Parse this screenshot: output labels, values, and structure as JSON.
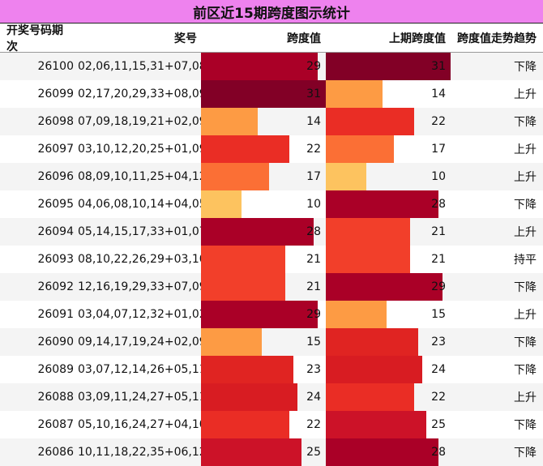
{
  "title": "前区近15期跨度图示统计",
  "headers": {
    "issue": "开奖号码期次",
    "numbers": "奖号",
    "span": "跨度值",
    "prev_span": "上期跨度值",
    "trend": "跨度值走势趋势"
  },
  "span_max": 31,
  "color_scale": {
    "10": "#fdc35f",
    "14": "#fd9b44",
    "15": "#fd9b44",
    "17": "#fb6f35",
    "21": "#f23f2a",
    "22": "#ea2d25",
    "23": "#e02422",
    "24": "#d81c22",
    "25": "#cc1228",
    "28": "#aa0027",
    "29": "#aa0027",
    "31": "#820026"
  },
  "rows": [
    {
      "issue": "26100",
      "numbers": "02,06,11,15,31+07,08",
      "span": 29,
      "prev_span": 31,
      "trend": "下降"
    },
    {
      "issue": "26099",
      "numbers": "02,17,20,29,33+08,09",
      "span": 31,
      "prev_span": 14,
      "trend": "上升"
    },
    {
      "issue": "26098",
      "numbers": "07,09,18,19,21+02,09",
      "span": 14,
      "prev_span": 22,
      "trend": "下降"
    },
    {
      "issue": "26097",
      "numbers": "03,10,12,20,25+01,09",
      "span": 22,
      "prev_span": 17,
      "trend": "上升"
    },
    {
      "issue": "26096",
      "numbers": "08,09,10,11,25+04,12",
      "span": 17,
      "prev_span": 10,
      "trend": "上升"
    },
    {
      "issue": "26095",
      "numbers": "04,06,08,10,14+04,05",
      "span": 10,
      "prev_span": 28,
      "trend": "下降"
    },
    {
      "issue": "26094",
      "numbers": "05,14,15,17,33+01,07",
      "span": 28,
      "prev_span": 21,
      "trend": "上升"
    },
    {
      "issue": "26093",
      "numbers": "08,10,22,26,29+03,10",
      "span": 21,
      "prev_span": 21,
      "trend": "持平"
    },
    {
      "issue": "26092",
      "numbers": "12,16,19,29,33+07,09",
      "span": 21,
      "prev_span": 29,
      "trend": "下降"
    },
    {
      "issue": "26091",
      "numbers": "03,04,07,12,32+01,02",
      "span": 29,
      "prev_span": 15,
      "trend": "上升"
    },
    {
      "issue": "26090",
      "numbers": "09,14,17,19,24+02,09",
      "span": 15,
      "prev_span": 23,
      "trend": "下降"
    },
    {
      "issue": "26089",
      "numbers": "03,07,12,14,26+05,11",
      "span": 23,
      "prev_span": 24,
      "trend": "下降"
    },
    {
      "issue": "26088",
      "numbers": "03,09,11,24,27+05,11",
      "span": 24,
      "prev_span": 22,
      "trend": "上升"
    },
    {
      "issue": "26087",
      "numbers": "05,10,16,24,27+04,10",
      "span": 22,
      "prev_span": 25,
      "trend": "下降"
    },
    {
      "issue": "26086",
      "numbers": "10,11,18,22,35+06,12",
      "span": 25,
      "prev_span": 28,
      "trend": "下降"
    }
  ]
}
